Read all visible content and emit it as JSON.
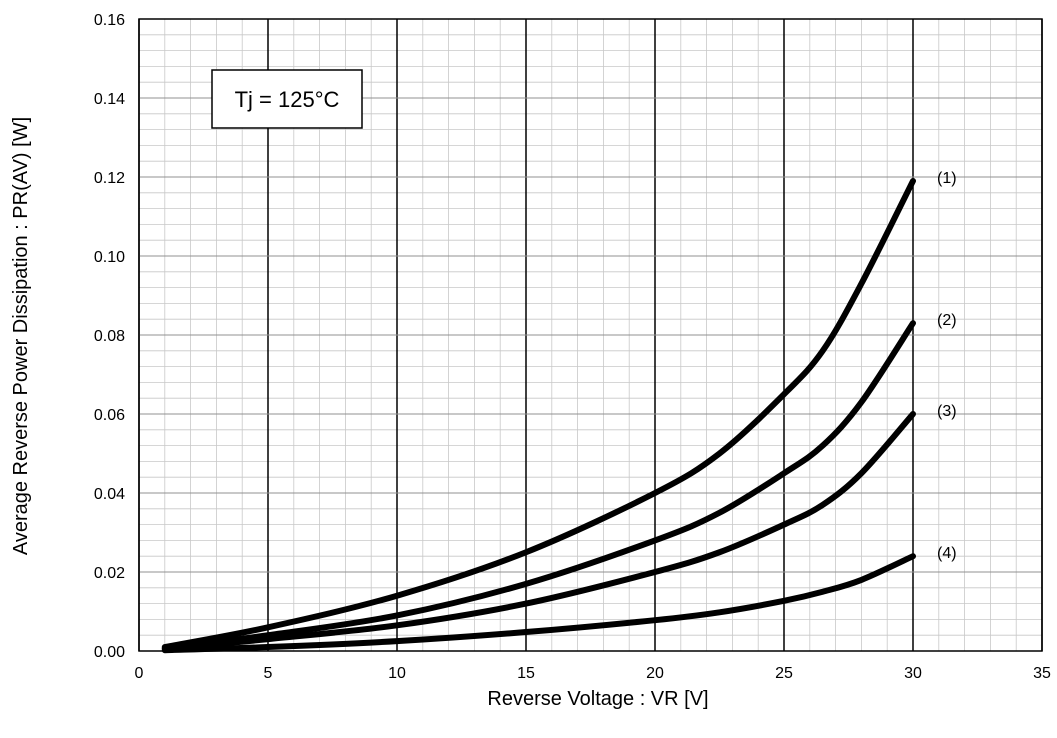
{
  "chart_data": {
    "type": "line",
    "title": "",
    "xlabel": "Reverse Voltage : VR [V]",
    "ylabel": "Average Reverse Power Dissipation : PR(AV) [W]",
    "xlim": [
      0,
      35
    ],
    "ylim": [
      0,
      0.16
    ],
    "x_ticks": [
      "0",
      "5",
      "10",
      "15",
      "20",
      "25",
      "30",
      "35"
    ],
    "y_ticks": [
      "0.00",
      "0.02",
      "0.04",
      "0.06",
      "0.08",
      "0.10",
      "0.12",
      "0.14",
      "0.16"
    ],
    "grid": true,
    "annotation": "Tj = 125°C",
    "series": [
      {
        "name": "(1)",
        "x": [
          1,
          5,
          10,
          15,
          20,
          22.5,
          25,
          26.5,
          28,
          30
        ],
        "y": [
          0.001,
          0.006,
          0.014,
          0.025,
          0.04,
          0.05,
          0.065,
          0.076,
          0.093,
          0.119
        ]
      },
      {
        "name": "(2)",
        "x": [
          1,
          5,
          10,
          15,
          20,
          22.5,
          25,
          26.5,
          28,
          30
        ],
        "y": [
          0.0007,
          0.004,
          0.009,
          0.017,
          0.028,
          0.035,
          0.045,
          0.052,
          0.063,
          0.083
        ]
      },
      {
        "name": "(3)",
        "x": [
          1,
          5,
          10,
          15,
          20,
          22.5,
          25,
          26.5,
          28,
          30
        ],
        "y": [
          0.0005,
          0.003,
          0.0065,
          0.012,
          0.02,
          0.025,
          0.032,
          0.037,
          0.045,
          0.06
        ]
      },
      {
        "name": "(4)",
        "x": [
          1,
          5,
          10,
          15,
          20,
          22.5,
          25,
          26.5,
          28,
          30
        ],
        "y": [
          0.0002,
          0.001,
          0.0025,
          0.0048,
          0.0078,
          0.0098,
          0.0127,
          0.015,
          0.018,
          0.024
        ]
      }
    ]
  }
}
